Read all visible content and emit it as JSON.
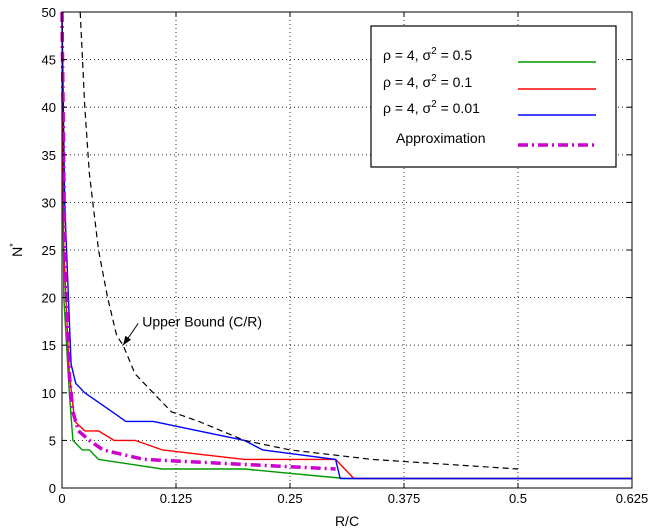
{
  "chart_data": {
    "type": "line",
    "xlabel": "R/C",
    "ylabel": "N",
    "ylabel_sup": "*",
    "xlim": [
      0,
      0.625
    ],
    "ylim": [
      0,
      50
    ],
    "xticks": [
      0,
      0.125,
      0.25,
      0.375,
      0.5,
      0.625
    ],
    "xtick_labels": [
      "0",
      "0.125",
      "0.25",
      "0.375",
      "0.5",
      "0.625"
    ],
    "yticks": [
      0,
      5,
      10,
      15,
      20,
      25,
      30,
      35,
      40,
      45,
      50
    ],
    "ytick_labels": [
      "0",
      "5",
      "10",
      "15",
      "20",
      "25",
      "30",
      "35",
      "40",
      "45",
      "50"
    ],
    "grid": true,
    "legend_position": "top-right",
    "legend": [
      {
        "prefix": "ρ = 4, σ",
        "sup": "2",
        "suffix": " = 0.5",
        "color": "#009900",
        "style": "solid"
      },
      {
        "prefix": "ρ = 4, σ",
        "sup": "2",
        "suffix": " = 0.1",
        "color": "#ff0000",
        "style": "solid"
      },
      {
        "prefix": "ρ = 4, σ",
        "sup": "2",
        "suffix": " = 0.01",
        "color": "#0000ff",
        "style": "solid"
      },
      {
        "prefix": "Approximation",
        "sup": "",
        "suffix": "",
        "color": "#cc00cc",
        "style": "dashdot"
      }
    ],
    "annotation": {
      "text": "Upper Bound (C/R)",
      "arrow_to": [
        0.067,
        15
      ],
      "text_at": [
        0.088,
        17.5
      ]
    },
    "series": [
      {
        "key": "s05",
        "color": "#009900",
        "style": "solid",
        "x": [
          0.0,
          0.002,
          0.008,
          0.012,
          0.022,
          0.03,
          0.04,
          0.11,
          0.2,
          0.31,
          0.625
        ],
        "y": [
          50,
          20,
          10,
          5,
          4,
          4,
          3,
          2,
          2,
          1,
          1
        ]
      },
      {
        "key": "s01",
        "color": "#ff0000",
        "style": "solid",
        "x": [
          0.0,
          0.002,
          0.008,
          0.014,
          0.025,
          0.04,
          0.057,
          0.08,
          0.11,
          0.2,
          0.3,
          0.32,
          0.625
        ],
        "y": [
          50,
          25,
          12,
          7,
          6,
          6,
          5,
          5,
          4,
          3,
          3,
          1,
          1
        ]
      },
      {
        "key": "s001",
        "color": "#0000ff",
        "style": "solid",
        "x": [
          0.0,
          0.003,
          0.007,
          0.01,
          0.015,
          0.025,
          0.04,
          0.055,
          0.07,
          0.1,
          0.15,
          0.2,
          0.22,
          0.3,
          0.305,
          0.625
        ],
        "y": [
          50,
          30,
          20,
          13,
          11,
          10,
          9,
          8,
          7,
          7,
          6,
          5,
          4,
          3,
          1,
          1
        ]
      },
      {
        "key": "approx",
        "color": "#cc00cc",
        "style": "dashdot",
        "x": [
          0.0,
          0.003,
          0.008,
          0.012,
          0.018,
          0.03,
          0.045,
          0.09,
          0.3
        ],
        "y": [
          50,
          25,
          12,
          8,
          6,
          5,
          4,
          3,
          2
        ]
      },
      {
        "key": "upper",
        "color": "#000000",
        "style": "dashed",
        "x": [
          0.02,
          0.025,
          0.03,
          0.04,
          0.05,
          0.06,
          0.067,
          0.08,
          0.09,
          0.1,
          0.11,
          0.12,
          0.15,
          0.2,
          0.25,
          0.34,
          0.5
        ],
        "y": [
          50,
          40,
          33,
          25,
          20,
          16,
          15,
          12,
          11,
          10,
          9,
          8,
          7,
          5,
          4,
          3,
          2
        ]
      }
    ]
  }
}
